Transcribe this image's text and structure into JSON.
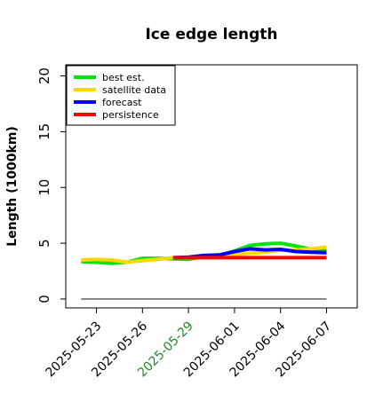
{
  "chart_data": {
    "type": "line",
    "title": "Ice edge length",
    "xlabel": "",
    "ylabel": "Length (1000km)",
    "ylim": [
      -0.8,
      21
    ],
    "xlim": [
      "2025-05-21",
      "2025-06-09"
    ],
    "yticks": [
      0,
      5,
      10,
      15,
      20
    ],
    "xticks": [
      {
        "date": "2025-05-23",
        "label": "2025-05-23",
        "color": "#000000"
      },
      {
        "date": "2025-05-26",
        "label": "2025-05-26",
        "color": "#000000"
      },
      {
        "date": "2025-05-29",
        "label": "2025-05-29",
        "color": "#228b22"
      },
      {
        "date": "2025-06-01",
        "label": "2025-06-01",
        "color": "#000000"
      },
      {
        "date": "2025-06-04",
        "label": "2025-06-04",
        "color": "#000000"
      },
      {
        "date": "2025-06-07",
        "label": "2025-06-07",
        "color": "#000000"
      }
    ],
    "legend_position": "top-left",
    "grid": false,
    "series": [
      {
        "name": "best est.",
        "color": "#00e400",
        "x": [
          "2025-05-22",
          "2025-05-23",
          "2025-05-24",
          "2025-05-25",
          "2025-05-26",
          "2025-05-27",
          "2025-05-28",
          "2025-05-29",
          "2025-05-30",
          "2025-05-31",
          "2025-06-01",
          "2025-06-02",
          "2025-06-03",
          "2025-06-04",
          "2025-06-05",
          "2025-06-06",
          "2025-06-07"
        ],
        "y": [
          3.35,
          3.3,
          3.2,
          3.3,
          3.65,
          3.65,
          3.6,
          3.55,
          3.8,
          3.9,
          4.3,
          4.8,
          4.95,
          5.0,
          4.75,
          4.45,
          4.4
        ]
      },
      {
        "name": "satellite data",
        "color": "#ffd700",
        "x": [
          "2025-05-22",
          "2025-05-23",
          "2025-05-24",
          "2025-05-25",
          "2025-05-26",
          "2025-05-27",
          "2025-05-28",
          "2025-05-29",
          "2025-05-30",
          "2025-05-31",
          "2025-06-01",
          "2025-06-02",
          "2025-06-03",
          "2025-06-04",
          "2025-06-05",
          "2025-06-06",
          "2025-06-07"
        ],
        "y": [
          3.5,
          3.55,
          3.5,
          3.3,
          3.45,
          3.55,
          3.7,
          3.7,
          3.75,
          3.8,
          3.95,
          4.1,
          4.2,
          4.35,
          4.4,
          4.5,
          4.65
        ]
      },
      {
        "name": "forecast",
        "color": "#0000ff",
        "x": [
          "2025-05-28",
          "2025-05-29",
          "2025-05-30",
          "2025-05-31",
          "2025-06-01",
          "2025-06-02",
          "2025-06-03",
          "2025-06-04",
          "2025-06-05",
          "2025-06-06",
          "2025-06-07"
        ],
        "y": [
          3.7,
          3.75,
          3.9,
          3.95,
          4.25,
          4.5,
          4.4,
          4.45,
          4.25,
          4.2,
          4.15
        ]
      },
      {
        "name": "persistence",
        "color": "#ff0000",
        "x": [
          "2025-05-28",
          "2025-06-07"
        ],
        "y": [
          3.7,
          3.7
        ]
      }
    ],
    "reference_line": {
      "color": "#808080",
      "x": [
        "2025-05-22",
        "2025-06-07"
      ],
      "y": [
        0,
        0
      ]
    }
  }
}
